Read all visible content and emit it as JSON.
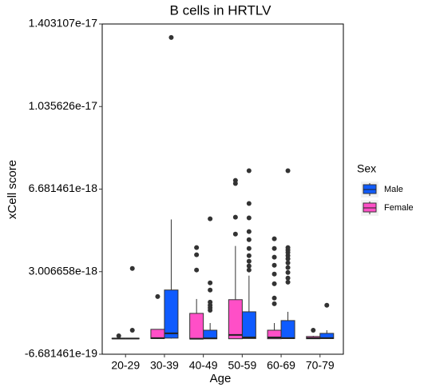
{
  "chart_data": {
    "type": "box",
    "title": "B cells in HRTLV",
    "x_label": "Age",
    "y_label": "xCell score",
    "categories": [
      "20-29",
      "30-39",
      "40-49",
      "50-59",
      "60-69",
      "70-79"
    ],
    "ylim": [
      -6.681461e-19,
      1.403107e-17
    ],
    "yticks": [
      -6.681461e-19,
      3.006658e-18,
      6.681461e-18,
      1.035626e-17,
      1.403107e-17
    ],
    "legend_title": "Sex",
    "legend_position": "right",
    "series": [
      {
        "name": "Male",
        "color": "#0f5bff",
        "boxes": [
          {
            "min": 2e-20,
            "q1": 2e-20,
            "median": 3e-20,
            "q3": 4e-20,
            "max": 5e-20,
            "outliers": [
              4e-19,
              3.15e-18
            ]
          },
          {
            "min": 3e-20,
            "q1": 5e-20,
            "median": 2.6e-19,
            "q3": 2.19e-18,
            "max": 5.33e-18,
            "outliers": [
              1.343e-17
            ]
          },
          {
            "min": 1e-20,
            "q1": 2e-20,
            "median": 4e-20,
            "q3": 4e-19,
            "max": 7.2e-19,
            "outliers": [
              1.29e-18,
              1.4e-18,
              1.51e-18,
              1.65e-18,
              2.19e-18,
              2.51e-18,
              5.36e-18
            ]
          },
          {
            "min": 2e-20,
            "q1": 3e-20,
            "median": 8e-20,
            "q3": 1.22e-18,
            "max": 2.83e-18,
            "outliers": [
              3.08e-18,
              3.26e-18,
              3.47e-18,
              3.72e-18,
              4.04e-18,
              4.43e-18,
              4.79e-18,
              5.4e-18,
              6.04e-18,
              7.5e-18
            ]
          },
          {
            "min": 2e-20,
            "q1": 3e-20,
            "median": 5e-20,
            "q3": 8.3e-19,
            "max": 1.22e-18,
            "outliers": [
              2.54e-18,
              2.72e-18,
              2.97e-18,
              3.19e-18,
              3.4e-18,
              3.58e-18,
              3.72e-18,
              3.86e-18,
              3.97e-18,
              4.08e-18,
              7.5e-18
            ]
          },
          {
            "min": 2e-20,
            "q1": 3e-20,
            "median": 5e-20,
            "q3": 2.6e-19,
            "max": 4e-19,
            "outliers": [
              1.51e-18
            ]
          }
        ]
      },
      {
        "name": "Female",
        "color": "#ff4fc7",
        "boxes": [
          {
            "min": 1e-20,
            "q1": 2e-20,
            "median": 3e-20,
            "q3": 4e-20,
            "max": 6e-20,
            "outliers": [
              1.5e-19
            ]
          },
          {
            "min": 1e-20,
            "q1": 3e-20,
            "median": 5e-20,
            "q3": 4.4e-19,
            "max": 4.4e-19,
            "outliers": [
              1.9e-18
            ]
          },
          {
            "min": 1e-20,
            "q1": 1e-20,
            "median": 2e-20,
            "q3": 1.15e-18,
            "max": 1.79e-18,
            "outliers": [
              3.08e-18,
              3.76e-18,
              4.08e-18
            ]
          },
          {
            "min": 1e-20,
            "q1": 2e-20,
            "median": 1.9e-19,
            "q3": 1.76e-18,
            "max": 4.15e-18,
            "outliers": [
              4.68e-18,
              5.43e-18,
              6.93e-18,
              7.07e-18
            ]
          },
          {
            "min": 1e-20,
            "q1": 2e-20,
            "median": 8e-20,
            "q3": 4e-19,
            "max": 7.2e-19,
            "outliers": [
              1.58e-18,
              1.83e-18,
              2.47e-18,
              2.9e-18,
              3.29e-18,
              3.65e-18,
              4.04e-18,
              4.47e-18
            ]
          },
          {
            "min": 1e-20,
            "q1": 2e-20,
            "median": 5e-20,
            "q3": 1.2e-19,
            "max": 1.5e-19,
            "outliers": [
              4e-19
            ]
          }
        ]
      }
    ]
  }
}
